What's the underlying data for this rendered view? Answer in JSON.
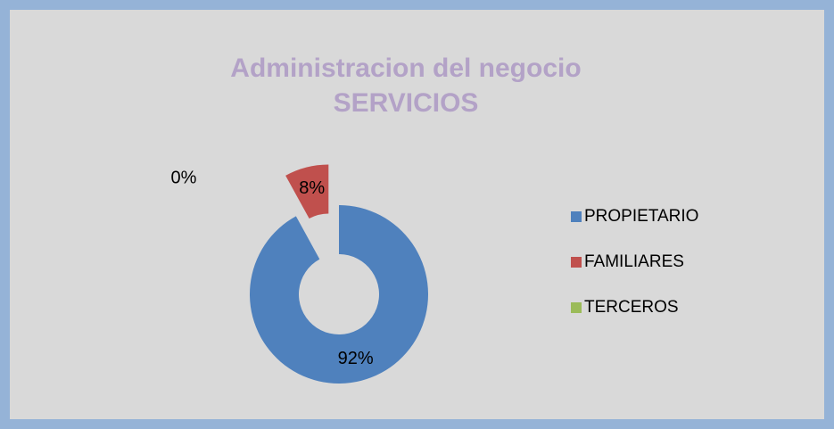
{
  "chart_data": {
    "type": "donut",
    "title": [
      "Administracion del negocio",
      "SERVICIOS"
    ],
    "categories": [
      "PROPIETARIO",
      "FAMILIARES",
      "TERCEROS"
    ],
    "values": [
      92,
      8,
      0
    ],
    "value_labels": [
      "92%",
      "8%",
      "0%"
    ],
    "colors": [
      "#4f81bd",
      "#c0504d",
      "#9bbb59"
    ],
    "legend": "right"
  }
}
